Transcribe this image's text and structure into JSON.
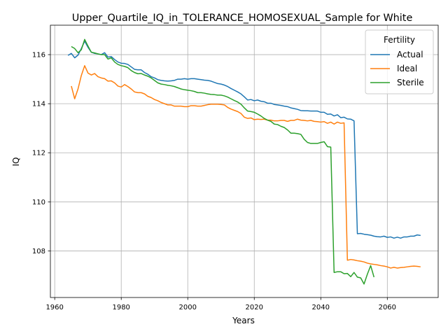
{
  "chart_data": {
    "type": "line",
    "title": "Upper_Quartile_IQ_in_TOLERANCE_HOMOSEXUAL_Sample for White",
    "xlabel": "Years",
    "ylabel": "IQ",
    "xlim": [
      1958.7,
      2075.3
    ],
    "ylim": [
      106.1,
      117.2
    ],
    "xticks": [
      1960,
      1980,
      2000,
      2020,
      2040,
      2060
    ],
    "yticks": [
      108,
      110,
      112,
      114,
      116
    ],
    "grid": true,
    "legend": {
      "title": "Fertility",
      "placement": "top-right"
    },
    "series": [
      {
        "name": "Actual",
        "color": "#1f77b4",
        "points": [
          [
            1964,
            115.97
          ],
          [
            1965,
            116.05
          ],
          [
            1966,
            115.87
          ],
          [
            1967,
            115.98
          ],
          [
            1968,
            116.25
          ],
          [
            1969,
            116.55
          ],
          [
            1970,
            116.3
          ],
          [
            1971,
            116.1
          ],
          [
            1972,
            116.05
          ],
          [
            1973,
            116.03
          ],
          [
            1974,
            116.0
          ],
          [
            1975,
            116.08
          ],
          [
            1976,
            115.9
          ],
          [
            1977,
            115.92
          ],
          [
            1978,
            115.8
          ],
          [
            1979,
            115.7
          ],
          [
            1980,
            115.65
          ],
          [
            1981,
            115.64
          ],
          [
            1982,
            115.6
          ],
          [
            1983,
            115.5
          ],
          [
            1984,
            115.4
          ],
          [
            1985,
            115.38
          ],
          [
            1986,
            115.38
          ],
          [
            1987,
            115.27
          ],
          [
            1988,
            115.2
          ],
          [
            1989,
            115.1
          ],
          [
            1990,
            115.05
          ],
          [
            1991,
            114.98
          ],
          [
            1992,
            114.95
          ],
          [
            1993,
            114.93
          ],
          [
            1994,
            114.92
          ],
          [
            1995,
            114.93
          ],
          [
            1996,
            114.95
          ],
          [
            1997,
            115.0
          ],
          [
            1998,
            115.0
          ],
          [
            1999,
            115.02
          ],
          [
            2000,
            115.0
          ],
          [
            2001,
            115.02
          ],
          [
            2002,
            115.02
          ],
          [
            2003,
            115.0
          ],
          [
            2004,
            114.98
          ],
          [
            2005,
            114.96
          ],
          [
            2006,
            114.95
          ],
          [
            2007,
            114.92
          ],
          [
            2008,
            114.87
          ],
          [
            2009,
            114.82
          ],
          [
            2010,
            114.8
          ],
          [
            2011,
            114.76
          ],
          [
            2012,
            114.7
          ],
          [
            2013,
            114.62
          ],
          [
            2014,
            114.55
          ],
          [
            2015,
            114.48
          ],
          [
            2016,
            114.4
          ],
          [
            2017,
            114.28
          ],
          [
            2018,
            114.15
          ],
          [
            2019,
            114.17
          ],
          [
            2020,
            114.12
          ],
          [
            2021,
            114.15
          ],
          [
            2022,
            114.1
          ],
          [
            2023,
            114.08
          ],
          [
            2024,
            114.02
          ],
          [
            2025,
            114.02
          ],
          [
            2026,
            113.97
          ],
          [
            2027,
            113.95
          ],
          [
            2028,
            113.93
          ],
          [
            2029,
            113.9
          ],
          [
            2030,
            113.88
          ],
          [
            2031,
            113.83
          ],
          [
            2032,
            113.8
          ],
          [
            2033,
            113.77
          ],
          [
            2034,
            113.72
          ],
          [
            2035,
            113.71
          ],
          [
            2036,
            113.71
          ],
          [
            2037,
            113.7
          ],
          [
            2038,
            113.7
          ],
          [
            2039,
            113.7
          ],
          [
            2040,
            113.65
          ],
          [
            2041,
            113.65
          ],
          [
            2042,
            113.57
          ],
          [
            2043,
            113.58
          ],
          [
            2044,
            113.5
          ],
          [
            2045,
            113.55
          ],
          [
            2046,
            113.43
          ],
          [
            2047,
            113.45
          ],
          [
            2048,
            113.38
          ],
          [
            2049,
            113.37
          ],
          [
            2050,
            113.3
          ],
          [
            2051,
            108.7
          ],
          [
            2052,
            108.71
          ],
          [
            2053,
            108.68
          ],
          [
            2054,
            108.66
          ],
          [
            2055,
            108.64
          ],
          [
            2056,
            108.6
          ],
          [
            2057,
            108.58
          ],
          [
            2058,
            108.57
          ],
          [
            2059,
            108.6
          ],
          [
            2060,
            108.55
          ],
          [
            2061,
            108.57
          ],
          [
            2062,
            108.52
          ],
          [
            2063,
            108.56
          ],
          [
            2064,
            108.52
          ],
          [
            2065,
            108.57
          ],
          [
            2066,
            108.57
          ],
          [
            2067,
            108.6
          ],
          [
            2068,
            108.6
          ],
          [
            2069,
            108.65
          ],
          [
            2070,
            108.63
          ]
        ]
      },
      {
        "name": "Ideal",
        "color": "#ff7f0e",
        "points": [
          [
            1965,
            114.72
          ],
          [
            1966,
            114.2
          ],
          [
            1967,
            114.6
          ],
          [
            1968,
            115.15
          ],
          [
            1969,
            115.55
          ],
          [
            1970,
            115.25
          ],
          [
            1971,
            115.17
          ],
          [
            1972,
            115.23
          ],
          [
            1973,
            115.1
          ],
          [
            1974,
            115.05
          ],
          [
            1975,
            115.02
          ],
          [
            1976,
            114.92
          ],
          [
            1977,
            114.93
          ],
          [
            1978,
            114.85
          ],
          [
            1979,
            114.72
          ],
          [
            1980,
            114.68
          ],
          [
            1981,
            114.78
          ],
          [
            1982,
            114.7
          ],
          [
            1983,
            114.6
          ],
          [
            1984,
            114.48
          ],
          [
            1985,
            114.45
          ],
          [
            1986,
            114.45
          ],
          [
            1987,
            114.4
          ],
          [
            1988,
            114.3
          ],
          [
            1989,
            114.25
          ],
          [
            1990,
            114.17
          ],
          [
            1991,
            114.12
          ],
          [
            1992,
            114.05
          ],
          [
            1993,
            114.0
          ],
          [
            1994,
            113.95
          ],
          [
            1995,
            113.95
          ],
          [
            1996,
            113.9
          ],
          [
            1997,
            113.9
          ],
          [
            1998,
            113.9
          ],
          [
            1999,
            113.88
          ],
          [
            2000,
            113.88
          ],
          [
            2001,
            113.92
          ],
          [
            2002,
            113.92
          ],
          [
            2003,
            113.9
          ],
          [
            2004,
            113.9
          ],
          [
            2005,
            113.93
          ],
          [
            2006,
            113.96
          ],
          [
            2007,
            113.98
          ],
          [
            2008,
            113.98
          ],
          [
            2009,
            113.98
          ],
          [
            2010,
            113.97
          ],
          [
            2011,
            113.95
          ],
          [
            2012,
            113.85
          ],
          [
            2013,
            113.78
          ],
          [
            2014,
            113.73
          ],
          [
            2015,
            113.68
          ],
          [
            2016,
            113.6
          ],
          [
            2017,
            113.45
          ],
          [
            2018,
            113.4
          ],
          [
            2019,
            113.42
          ],
          [
            2020,
            113.35
          ],
          [
            2021,
            113.37
          ],
          [
            2022,
            113.36
          ],
          [
            2023,
            113.37
          ],
          [
            2024,
            113.33
          ],
          [
            2025,
            113.33
          ],
          [
            2026,
            113.3
          ],
          [
            2027,
            113.3
          ],
          [
            2028,
            113.32
          ],
          [
            2029,
            113.32
          ],
          [
            2030,
            113.28
          ],
          [
            2031,
            113.32
          ],
          [
            2032,
            113.32
          ],
          [
            2033,
            113.37
          ],
          [
            2034,
            113.33
          ],
          [
            2035,
            113.32
          ],
          [
            2036,
            113.3
          ],
          [
            2037,
            113.32
          ],
          [
            2038,
            113.28
          ],
          [
            2039,
            113.27
          ],
          [
            2040,
            113.25
          ],
          [
            2041,
            113.27
          ],
          [
            2042,
            113.2
          ],
          [
            2043,
            113.25
          ],
          [
            2044,
            113.17
          ],
          [
            2045,
            113.25
          ],
          [
            2046,
            113.2
          ],
          [
            2047,
            113.22
          ],
          [
            2048,
            107.62
          ],
          [
            2049,
            107.65
          ],
          [
            2050,
            107.63
          ],
          [
            2051,
            107.6
          ],
          [
            2052,
            107.58
          ],
          [
            2053,
            107.55
          ],
          [
            2054,
            107.5
          ],
          [
            2055,
            107.47
          ],
          [
            2056,
            107.45
          ],
          [
            2057,
            107.43
          ],
          [
            2058,
            107.4
          ],
          [
            2059,
            107.38
          ],
          [
            2060,
            107.35
          ],
          [
            2061,
            107.3
          ],
          [
            2062,
            107.33
          ],
          [
            2063,
            107.3
          ],
          [
            2064,
            107.32
          ],
          [
            2065,
            107.33
          ],
          [
            2066,
            107.35
          ],
          [
            2067,
            107.37
          ],
          [
            2068,
            107.38
          ],
          [
            2069,
            107.37
          ],
          [
            2070,
            107.35
          ]
        ]
      },
      {
        "name": "Sterile",
        "color": "#2ca02c",
        "points": [
          [
            1965,
            116.33
          ],
          [
            1966,
            116.25
          ],
          [
            1967,
            116.08
          ],
          [
            1968,
            116.2
          ],
          [
            1969,
            116.62
          ],
          [
            1970,
            116.35
          ],
          [
            1971,
            116.1
          ],
          [
            1972,
            116.07
          ],
          [
            1973,
            116.03
          ],
          [
            1974,
            116.0
          ],
          [
            1975,
            116.0
          ],
          [
            1976,
            115.82
          ],
          [
            1977,
            115.87
          ],
          [
            1978,
            115.7
          ],
          [
            1979,
            115.6
          ],
          [
            1980,
            115.55
          ],
          [
            1981,
            115.52
          ],
          [
            1982,
            115.47
          ],
          [
            1983,
            115.35
          ],
          [
            1984,
            115.27
          ],
          [
            1985,
            115.22
          ],
          [
            1986,
            115.23
          ],
          [
            1987,
            115.17
          ],
          [
            1988,
            115.12
          ],
          [
            1989,
            115.05
          ],
          [
            1990,
            114.95
          ],
          [
            1991,
            114.85
          ],
          [
            1992,
            114.8
          ],
          [
            1993,
            114.78
          ],
          [
            1994,
            114.75
          ],
          [
            1995,
            114.73
          ],
          [
            1996,
            114.7
          ],
          [
            1997,
            114.65
          ],
          [
            1998,
            114.6
          ],
          [
            1999,
            114.57
          ],
          [
            2000,
            114.55
          ],
          [
            2001,
            114.53
          ],
          [
            2002,
            114.5
          ],
          [
            2003,
            114.45
          ],
          [
            2004,
            114.45
          ],
          [
            2005,
            114.43
          ],
          [
            2006,
            114.4
          ],
          [
            2007,
            114.38
          ],
          [
            2008,
            114.37
          ],
          [
            2009,
            114.35
          ],
          [
            2010,
            114.35
          ],
          [
            2011,
            114.32
          ],
          [
            2012,
            114.27
          ],
          [
            2013,
            114.2
          ],
          [
            2014,
            114.13
          ],
          [
            2015,
            114.07
          ],
          [
            2016,
            113.98
          ],
          [
            2017,
            113.83
          ],
          [
            2018,
            113.7
          ],
          [
            2019,
            113.68
          ],
          [
            2020,
            113.65
          ],
          [
            2021,
            113.58
          ],
          [
            2022,
            113.5
          ],
          [
            2023,
            113.4
          ],
          [
            2024,
            113.33
          ],
          [
            2025,
            113.28
          ],
          [
            2026,
            113.17
          ],
          [
            2027,
            113.15
          ],
          [
            2028,
            113.08
          ],
          [
            2029,
            113.03
          ],
          [
            2030,
            112.93
          ],
          [
            2031,
            112.8
          ],
          [
            2032,
            112.8
          ],
          [
            2033,
            112.78
          ],
          [
            2034,
            112.75
          ],
          [
            2035,
            112.55
          ],
          [
            2036,
            112.42
          ],
          [
            2037,
            112.38
          ],
          [
            2038,
            112.38
          ],
          [
            2039,
            112.38
          ],
          [
            2040,
            112.42
          ],
          [
            2041,
            112.45
          ],
          [
            2042,
            112.25
          ],
          [
            2043,
            112.23
          ],
          [
            2044,
            107.12
          ],
          [
            2045,
            107.15
          ],
          [
            2046,
            107.15
          ],
          [
            2047,
            107.07
          ],
          [
            2048,
            107.08
          ],
          [
            2049,
            106.95
          ],
          [
            2050,
            107.12
          ],
          [
            2051,
            106.93
          ],
          [
            2052,
            106.9
          ],
          [
            2053,
            106.65
          ],
          [
            2054,
            107.05
          ],
          [
            2055,
            107.4
          ],
          [
            2056,
            106.93
          ]
        ]
      }
    ]
  }
}
